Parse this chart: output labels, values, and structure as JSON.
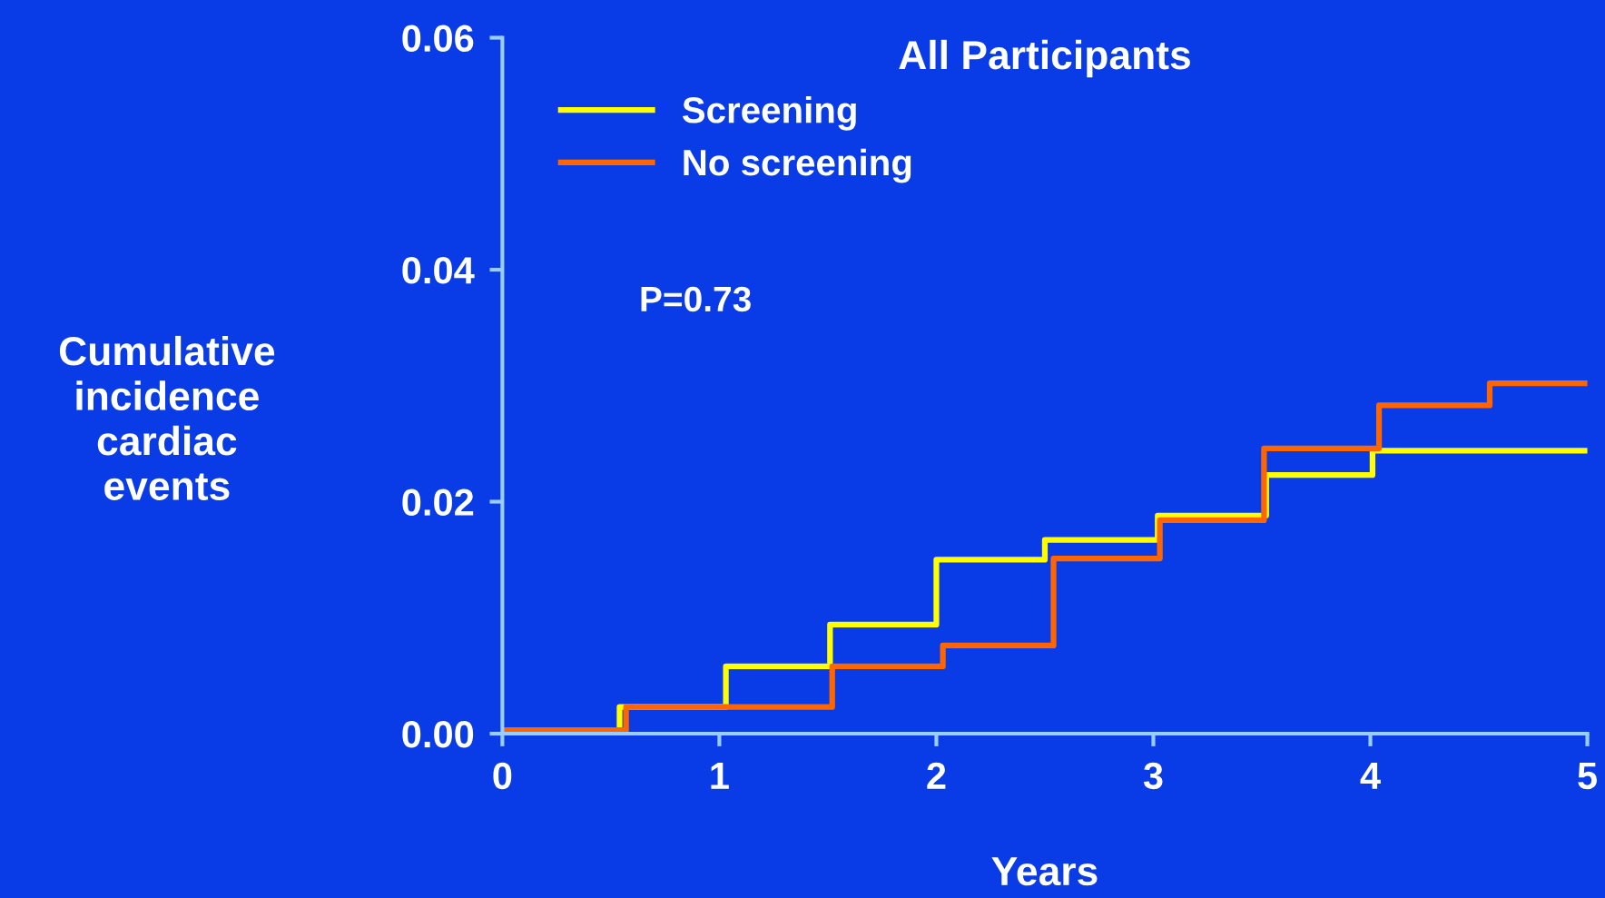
{
  "chart_data": {
    "type": "step",
    "title": "All Participants",
    "xlabel": "Years",
    "ylabel": "Cumulative\nincidence\ncardiac\nevents",
    "xlim": [
      0,
      5
    ],
    "xticks": [
      0,
      1,
      2,
      3,
      4,
      5
    ],
    "ylim": [
      0,
      0.06
    ],
    "yticks": [
      {
        "value": 0,
        "label": "0.00"
      },
      {
        "value": 0.02,
        "label": "0.02"
      },
      {
        "value": 0.04,
        "label": "0.04"
      },
      {
        "value": 0.06,
        "label": "0.06"
      }
    ],
    "series": [
      {
        "name": "Screening",
        "color": "#ffff00",
        "x": [
          0,
          0.54,
          1.03,
          1.51,
          2.0,
          2.5,
          3.02,
          3.52,
          4.01,
          5
        ],
        "values": [
          0.0003,
          0.0023,
          0.0058,
          0.0094,
          0.015,
          0.0167,
          0.0188,
          0.0223,
          0.0244,
          0.0244
        ]
      },
      {
        "name": "No screening",
        "color": "#ff6600",
        "x": [
          0,
          0.57,
          1.52,
          2.03,
          2.54,
          3.03,
          3.51,
          4.04,
          4.55,
          5
        ],
        "values": [
          0.0003,
          0.0023,
          0.0058,
          0.0076,
          0.0151,
          0.0184,
          0.0246,
          0.0283,
          0.0302,
          0.0302
        ]
      }
    ],
    "annotations": [
      "P=0.73"
    ],
    "legend": "top left",
    "grid": false
  }
}
